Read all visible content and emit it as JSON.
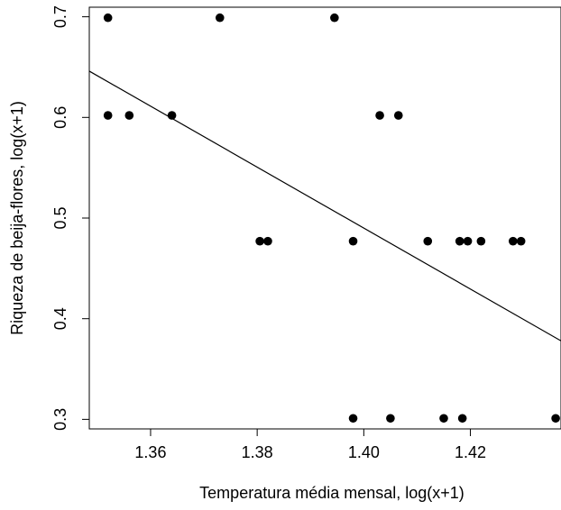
{
  "chart_data": {
    "type": "scatter",
    "title": "",
    "xlabel": "Temperatura média mensal, log(x+1)",
    "ylabel": "Riqueza de beija-flores, log(x+1)",
    "xlim": [
      1.3485,
      1.437
    ],
    "ylim": [
      0.2905,
      0.7095
    ],
    "xticks": [
      1.36,
      1.38,
      1.4,
      1.42
    ],
    "xtick_labels": [
      "1.36",
      "1.38",
      "1.40",
      "1.42"
    ],
    "yticks": [
      0.3,
      0.4,
      0.5,
      0.6,
      0.7
    ],
    "ytick_labels": [
      "0.3",
      "0.4",
      "0.5",
      "0.6",
      "0.7"
    ],
    "grid": false,
    "point_color": "#000000",
    "series": [
      {
        "points": [
          [
            1.352,
            0.699
          ],
          [
            1.373,
            0.699
          ],
          [
            1.3945,
            0.699
          ],
          [
            1.352,
            0.602
          ],
          [
            1.356,
            0.602
          ],
          [
            1.364,
            0.602
          ],
          [
            1.403,
            0.602
          ],
          [
            1.4065,
            0.602
          ],
          [
            1.3805,
            0.477
          ],
          [
            1.382,
            0.477
          ],
          [
            1.398,
            0.477
          ],
          [
            1.412,
            0.477
          ],
          [
            1.418,
            0.477
          ],
          [
            1.4195,
            0.477
          ],
          [
            1.422,
            0.477
          ],
          [
            1.428,
            0.477
          ],
          [
            1.4295,
            0.477
          ],
          [
            1.398,
            0.301
          ],
          [
            1.405,
            0.301
          ],
          [
            1.415,
            0.301
          ],
          [
            1.4185,
            0.301
          ],
          [
            1.436,
            0.301
          ]
        ]
      }
    ],
    "trend_line": {
      "x": [
        1.3485,
        1.437
      ],
      "y": [
        0.646,
        0.378
      ]
    }
  }
}
